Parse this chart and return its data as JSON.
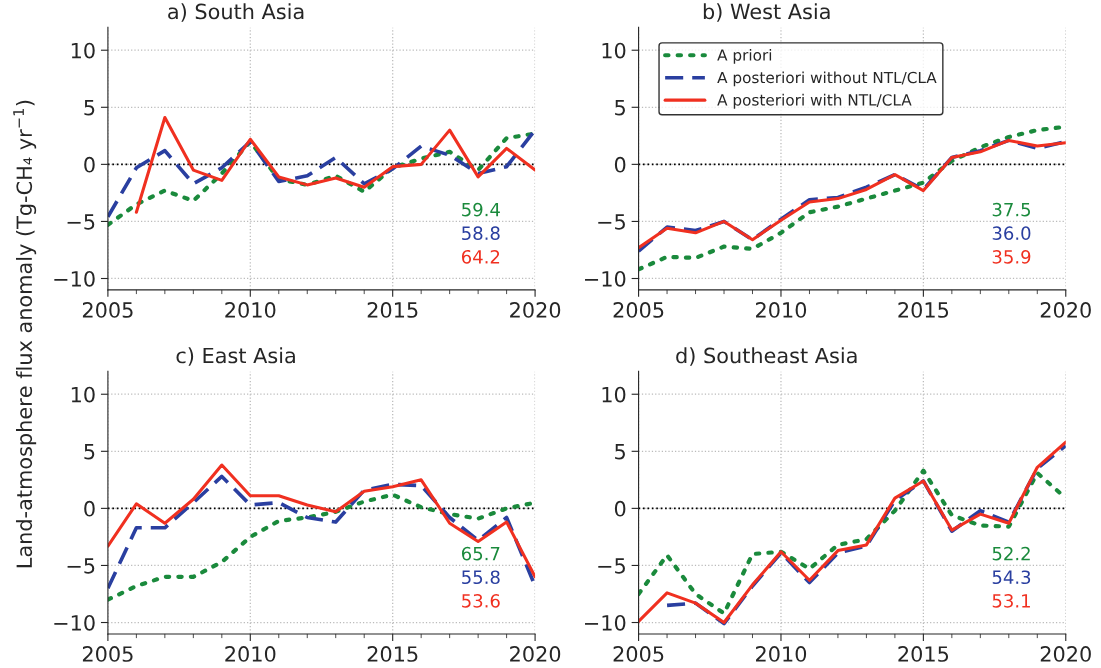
{
  "chart_data": [
    {
      "type": "line",
      "title": "a) South Asia",
      "ylabel": "Land-atmosphere flux anomaly (Tg-CH₄ yr$^{−1}$)",
      "x": [
        2005,
        2006,
        2007,
        2008,
        2009,
        2010,
        2011,
        2012,
        2013,
        2014,
        2015,
        2016,
        2017,
        2018,
        2019,
        2020
      ],
      "xlim": [
        2005,
        2020
      ],
      "xticks": [
        2005,
        2010,
        2015,
        2020
      ],
      "ylim": [
        -11,
        12
      ],
      "yticks": [
        -10,
        -5,
        0,
        5,
        10
      ],
      "grid": true,
      "legend": false,
      "ref_lines": [
        {
          "axis": "y",
          "value": 0,
          "color": "#000000",
          "line_style": "dotted"
        }
      ],
      "series": [
        {
          "color": "#1a8a3c",
          "line_style": "dotted",
          "values": [
            -5.3,
            -3.5,
            -2.3,
            -3.2,
            -0.8,
            2.0,
            -1.3,
            -1.8,
            -1.0,
            -2.4,
            -0.3,
            0.5,
            1.1,
            -0.5,
            2.3,
            2.7
          ]
        },
        {
          "color": "#2a3fa0",
          "line_style": "dashed",
          "values": [
            -4.6,
            -0.3,
            1.2,
            -1.7,
            -0.3,
            2.0,
            -1.5,
            -1.0,
            0.6,
            -1.7,
            -0.4,
            1.6,
            0.8,
            -0.8,
            -0.2,
            3.0
          ]
        },
        {
          "color": "#f03020",
          "line_style": "solid",
          "values": [
            null,
            -4.2,
            4.1,
            -0.5,
            -1.4,
            2.2,
            -1.1,
            -1.8,
            -1.2,
            -2.0,
            -0.2,
            0.0,
            3.0,
            -1.1,
            1.4,
            -0.5
          ]
        }
      ],
      "annotations": [
        "59.4",
        "58.8",
        "64.2"
      ]
    },
    {
      "type": "line",
      "title": "b) West Asia",
      "x": [
        2005,
        2006,
        2007,
        2008,
        2009,
        2010,
        2011,
        2012,
        2013,
        2014,
        2015,
        2016,
        2017,
        2018,
        2019,
        2020
      ],
      "xlim": [
        2005,
        2020
      ],
      "xticks": [
        2005,
        2010,
        2015,
        2020
      ],
      "ylim": [
        -11,
        12
      ],
      "yticks": [
        -10,
        -5,
        0,
        5,
        10
      ],
      "grid": true,
      "legend": "top left",
      "ref_lines": [
        {
          "axis": "y",
          "value": 0,
          "color": "#000000",
          "line_style": "dotted"
        }
      ],
      "series": [
        {
          "name": "A priori",
          "color": "#1a8a3c",
          "line_style": "dotted",
          "values": [
            -9.2,
            -8.1,
            -8.2,
            -7.2,
            -7.4,
            -6.0,
            -4.2,
            -3.7,
            -3.0,
            -2.3,
            -1.6,
            0.3,
            1.5,
            2.4,
            3.0,
            3.3
          ]
        },
        {
          "name": "A posteriori without NTL/CLA",
          "color": "#2a3fa0",
          "line_style": "dashed",
          "values": [
            -7.6,
            -5.5,
            -5.8,
            -5.0,
            -6.6,
            -4.8,
            -3.1,
            -2.9,
            -2.0,
            -0.9,
            -2.2,
            0.6,
            1.2,
            2.1,
            1.4,
            2.0
          ]
        },
        {
          "name": "A posteriori with NTL/CLA",
          "color": "#f03020",
          "line_style": "solid",
          "values": [
            -7.3,
            -5.6,
            -6.0,
            -5.0,
            -6.6,
            -4.9,
            -3.3,
            -3.0,
            -2.2,
            -0.9,
            -2.3,
            0.6,
            1.1,
            2.1,
            1.6,
            1.9
          ]
        }
      ],
      "annotations": [
        "37.5",
        "36.0",
        "35.9"
      ]
    },
    {
      "type": "line",
      "title": "c) East Asia",
      "x": [
        2005,
        2006,
        2007,
        2008,
        2009,
        2010,
        2011,
        2012,
        2013,
        2014,
        2015,
        2016,
        2017,
        2018,
        2019,
        2020
      ],
      "xlim": [
        2005,
        2020
      ],
      "xticks": [
        2005,
        2010,
        2015,
        2020
      ],
      "ylim": [
        -11,
        12
      ],
      "yticks": [
        -10,
        -5,
        0,
        5,
        10
      ],
      "grid": true,
      "legend": false,
      "ref_lines": [
        {
          "axis": "y",
          "value": 0,
          "color": "#000000",
          "line_style": "dotted"
        }
      ],
      "series": [
        {
          "color": "#1a8a3c",
          "line_style": "dotted",
          "values": [
            -8.0,
            -6.8,
            -6.0,
            -6.0,
            -4.7,
            -2.5,
            -1.1,
            -0.8,
            -0.3,
            0.6,
            1.2,
            0.1,
            -0.5,
            -0.9,
            0.0,
            0.5
          ]
        },
        {
          "color": "#2a3fa0",
          "line_style": "dashed",
          "values": [
            -7.0,
            -1.7,
            -1.7,
            0.5,
            2.8,
            0.3,
            0.5,
            -0.8,
            -1.2,
            1.6,
            2.1,
            2.0,
            -0.8,
            -2.8,
            -0.8,
            -6.8
          ]
        },
        {
          "color": "#f03020",
          "line_style": "solid",
          "values": [
            -3.3,
            0.4,
            -1.3,
            0.8,
            3.8,
            1.1,
            1.1,
            0.3,
            -0.3,
            1.5,
            1.9,
            2.5,
            -1.3,
            -2.9,
            -1.2,
            -6.0
          ]
        }
      ],
      "annotations": [
        "65.7",
        "55.8",
        "53.6"
      ]
    },
    {
      "type": "line",
      "title": "d) Southeast Asia",
      "x": [
        2005,
        2006,
        2007,
        2008,
        2009,
        2010,
        2011,
        2012,
        2013,
        2014,
        2015,
        2016,
        2017,
        2018,
        2019,
        2020
      ],
      "xlim": [
        2005,
        2020
      ],
      "xticks": [
        2005,
        2010,
        2015,
        2020
      ],
      "ylim": [
        -11,
        12
      ],
      "yticks": [
        -10,
        -5,
        0,
        5,
        10
      ],
      "grid": true,
      "legend": false,
      "ref_lines": [
        {
          "axis": "y",
          "value": 0,
          "color": "#000000",
          "line_style": "dotted"
        }
      ],
      "series": [
        {
          "color": "#1a8a3c",
          "line_style": "dotted",
          "values": [
            -7.5,
            -4.1,
            -7.5,
            -9.2,
            -4.0,
            -3.8,
            -5.3,
            -3.2,
            -2.7,
            -0.2,
            3.3,
            -0.6,
            -1.5,
            -1.6,
            3.1,
            0.9
          ]
        },
        {
          "color": "#2a3fa0",
          "line_style": "dashed",
          "values": [
            null,
            -8.5,
            -8.3,
            -10.1,
            -6.8,
            -3.9,
            -6.5,
            -3.9,
            -3.3,
            0.7,
            2.4,
            -2.0,
            -0.2,
            -1.2,
            3.5,
            5.5
          ]
        },
        {
          "color": "#f03020",
          "line_style": "solid",
          "values": [
            -9.9,
            -7.4,
            -8.3,
            -10.0,
            -6.7,
            -3.8,
            -6.3,
            -3.7,
            -3.2,
            0.9,
            2.4,
            -1.9,
            -0.5,
            -1.3,
            3.6,
            5.8
          ]
        }
      ],
      "annotations": [
        "52.2",
        "54.3",
        "53.1"
      ]
    }
  ]
}
